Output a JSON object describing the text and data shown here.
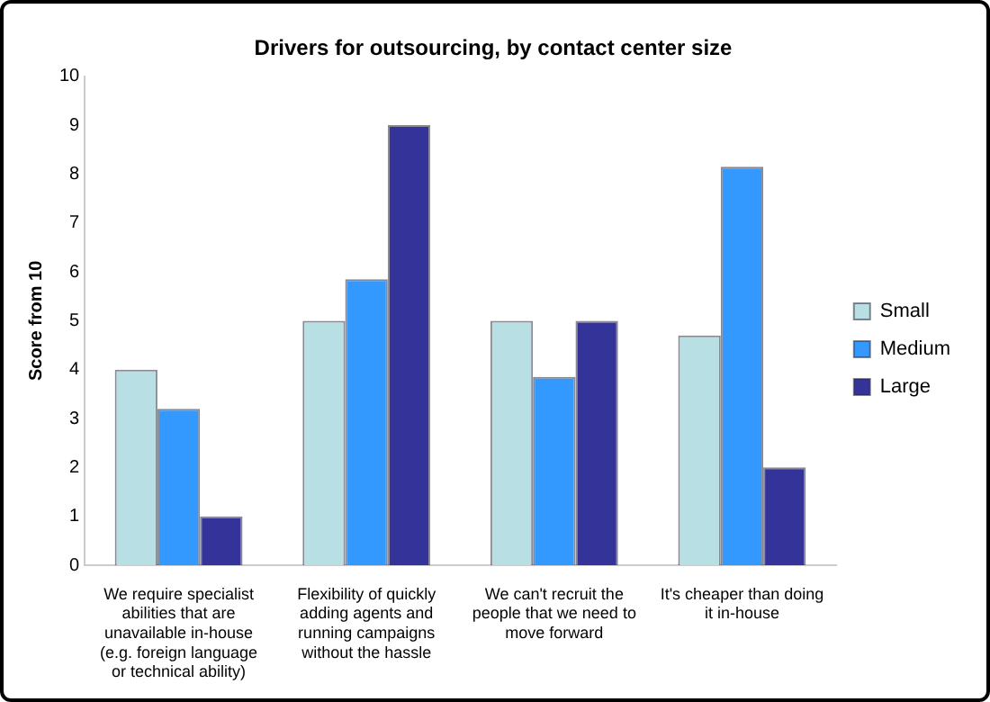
{
  "chart_data": {
    "type": "bar",
    "title": "Drivers for outsourcing, by contact center size",
    "ylabel": "Score from 10",
    "categories": [
      "We require specialist abilities that are unavailable in-house (e.g. foreign language or technical ability)",
      "Flexibility of quickly adding agents and running campaigns without the hassle",
      "We can't recruit the people that we need to move forward",
      "It's cheaper than doing it in-house"
    ],
    "series": [
      {
        "name": "Small",
        "color": "#b8e0e4",
        "values": [
          4,
          5,
          5,
          4.7
        ]
      },
      {
        "name": "Medium",
        "color": "#3399ff",
        "values": [
          3.2,
          5.85,
          3.85,
          8.15
        ]
      },
      {
        "name": "Large",
        "color": "#333399",
        "values": [
          1,
          9,
          5,
          2
        ]
      }
    ],
    "ylim": [
      0,
      10
    ],
    "yticks": [
      0,
      1,
      2,
      3,
      4,
      5,
      6,
      7,
      8,
      9,
      10
    ],
    "grid": false,
    "legend": "right"
  }
}
